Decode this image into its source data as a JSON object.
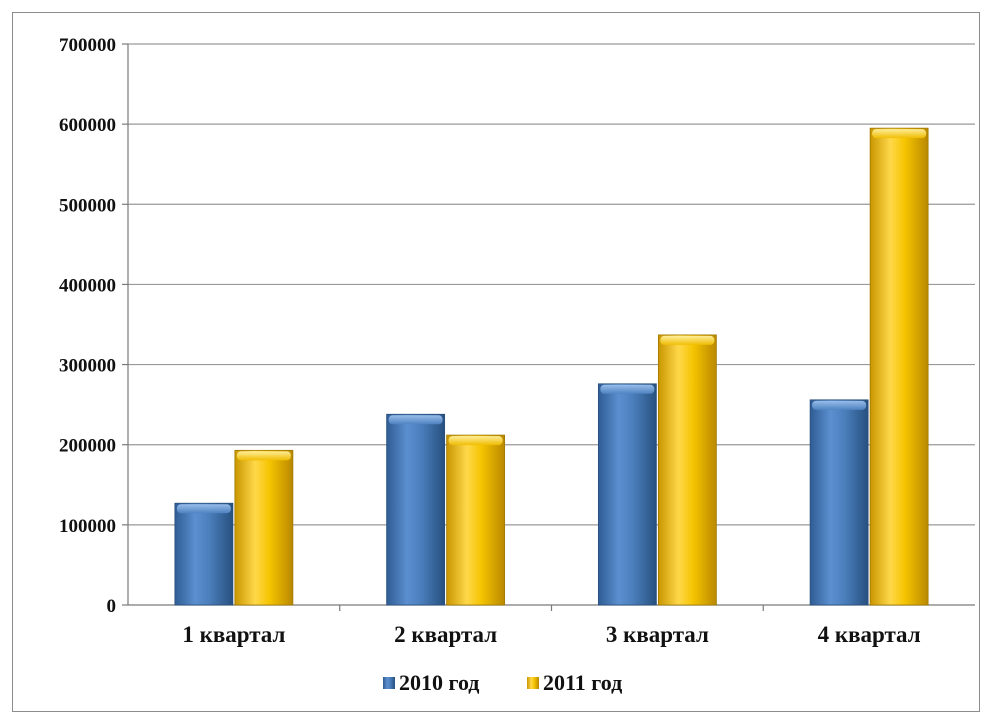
{
  "chart_data": {
    "type": "bar",
    "categories": [
      "1 квартал",
      "2 квартал",
      "3 квартал",
      "4 квартал"
    ],
    "series": [
      {
        "name": "2010 год",
        "values": [
          127000,
          238000,
          276000,
          256000
        ],
        "color": "#4a7ebb"
      },
      {
        "name": "2011 год",
        "values": [
          193000,
          212000,
          337000,
          595000
        ],
        "color": "#f5c400"
      }
    ],
    "ylim": [
      0,
      700000
    ],
    "yticks": [
      "0",
      "100000",
      "200000",
      "300000",
      "400000",
      "500000",
      "600000",
      "700000"
    ],
    "grid": true,
    "legend_position": "bottom"
  }
}
